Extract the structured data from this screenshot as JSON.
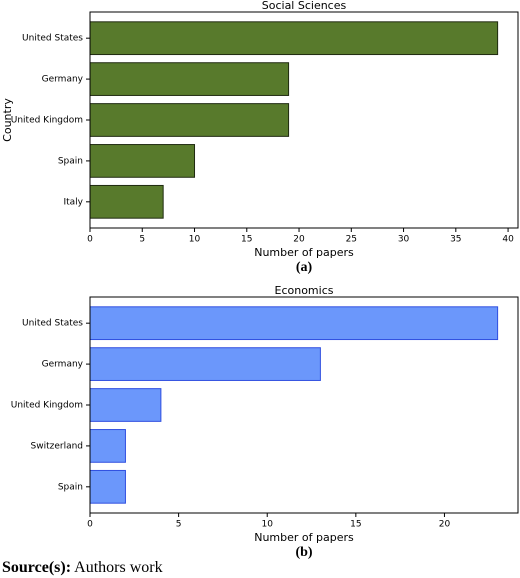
{
  "chart_data": [
    {
      "type": "bar",
      "orientation": "horizontal",
      "title": "Social Sciences",
      "xlabel": "Number of papers",
      "ylabel": "Country",
      "caption": "(a)",
      "categories": [
        "United States",
        "Germany",
        "United Kingdom",
        "Spain",
        "Italy"
      ],
      "values": [
        39,
        19,
        19,
        10,
        7
      ],
      "color": "#587a2c",
      "edgecolor": "#1f2a10",
      "xlim": [
        0,
        40.95
      ],
      "xticks": [
        0,
        5,
        10,
        15,
        20,
        25,
        30,
        35,
        40
      ]
    },
    {
      "type": "bar",
      "orientation": "horizontal",
      "title": "Economics",
      "xlabel": "Number of papers",
      "caption": "(b)",
      "categories": [
        "United States",
        "Germany",
        "United Kingdom",
        "Switzerland",
        "Spain"
      ],
      "values": [
        23,
        13,
        4,
        2,
        2
      ],
      "color": "#6b97fb",
      "edgecolor": "#2f4fe0",
      "xlim": [
        0,
        24.15
      ],
      "xticks": [
        0,
        5,
        10,
        15,
        20
      ]
    }
  ],
  "source": {
    "label": "Source(s):",
    "text": "Authors work"
  }
}
